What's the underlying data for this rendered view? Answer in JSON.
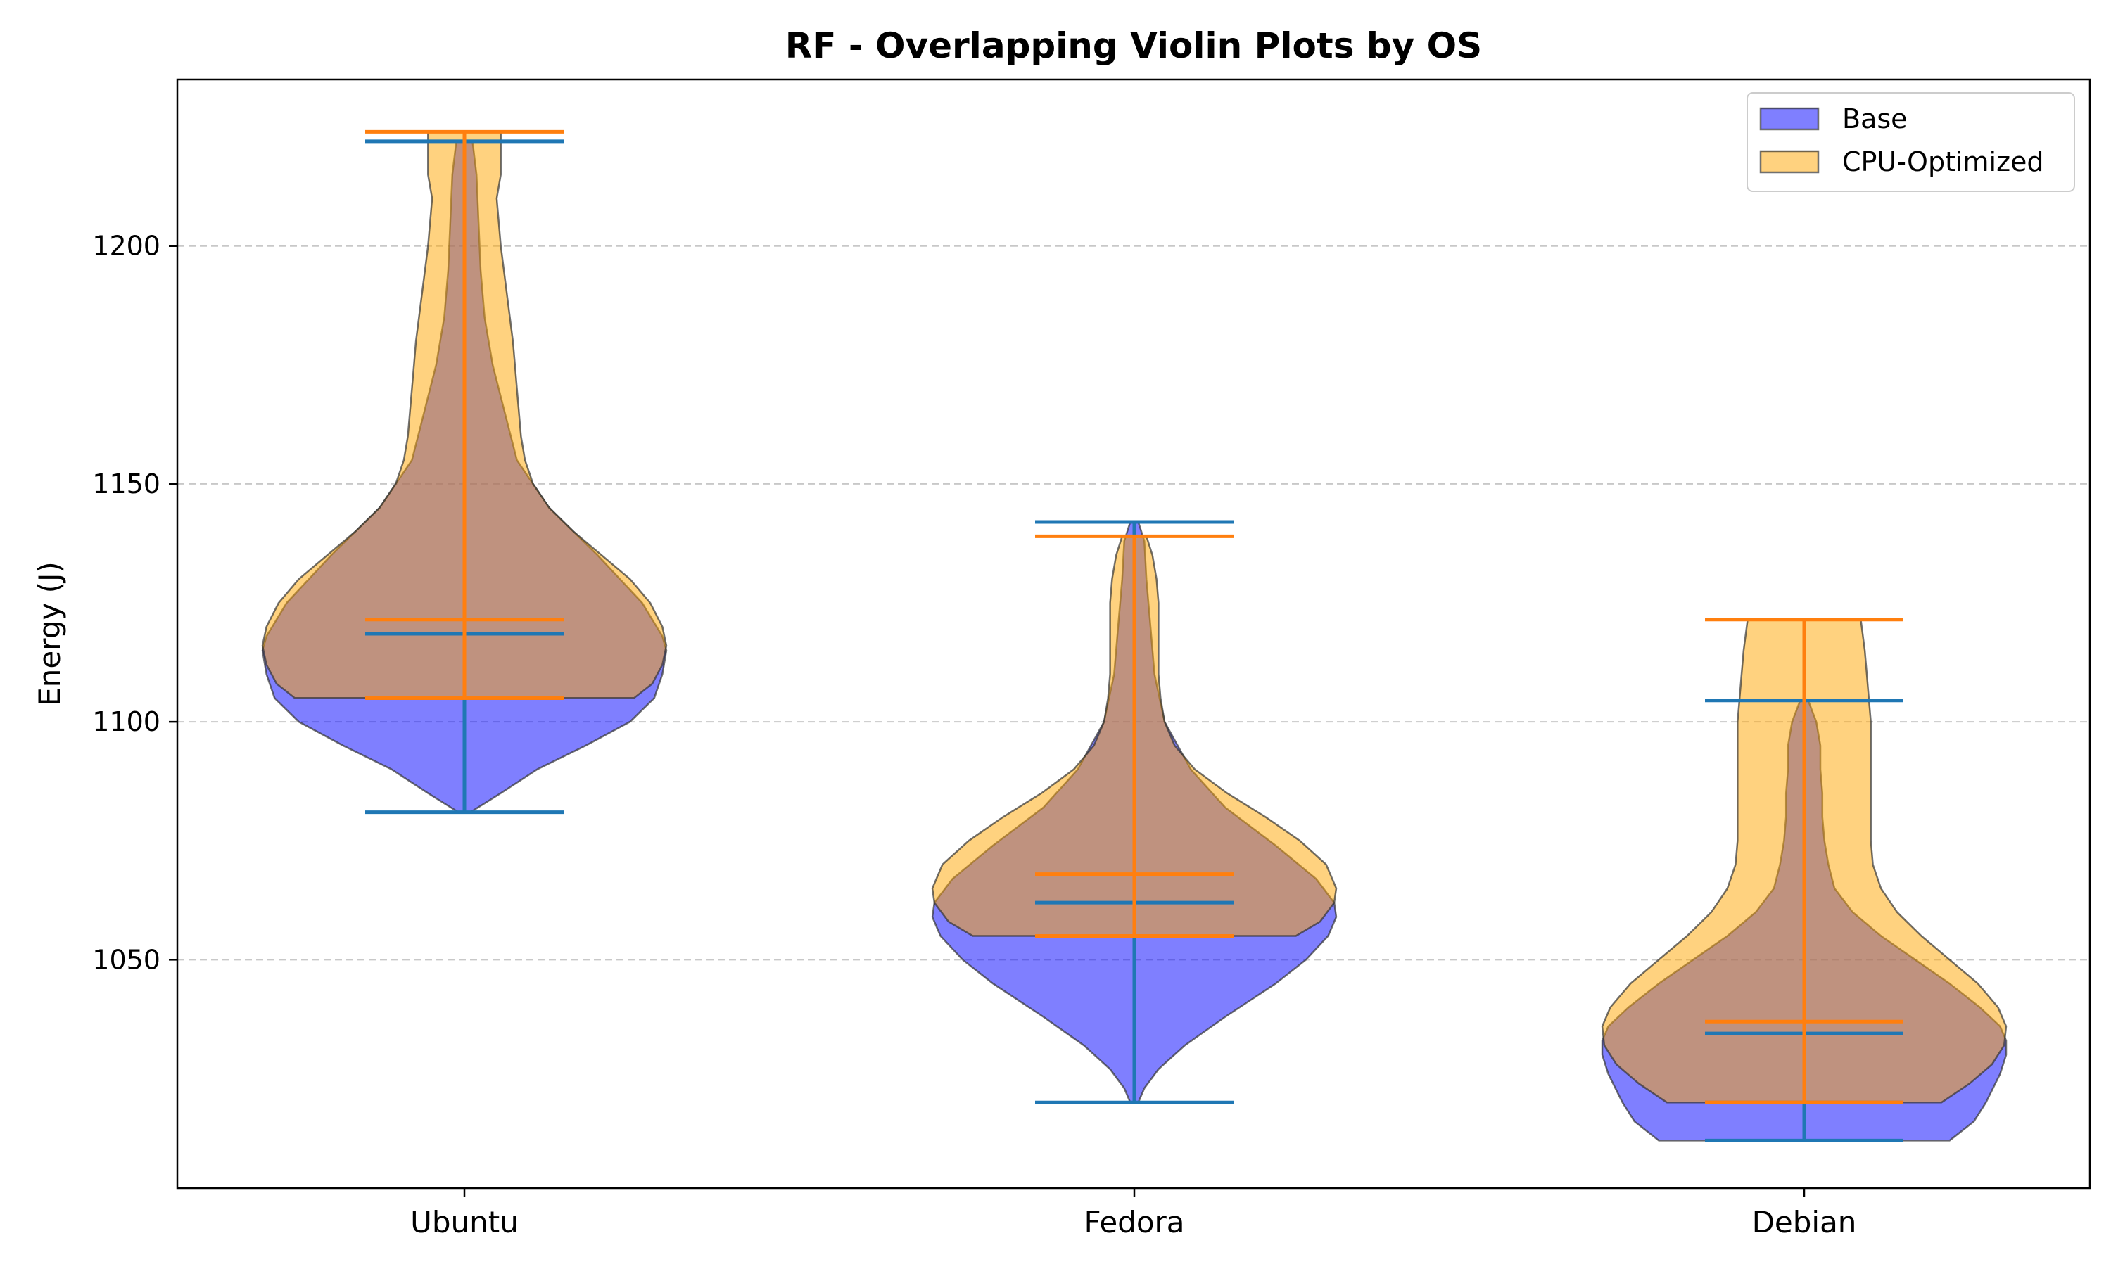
{
  "chart_data": {
    "type": "violin",
    "title": "RF - Overlapping Violin Plots by OS",
    "xlabel": "",
    "ylabel": "Energy (J)",
    "categories": [
      "Ubuntu",
      "Fedora",
      "Debian"
    ],
    "ylim": [
      1002,
      1235
    ],
    "yticks": [
      1050,
      1100,
      1150,
      1200
    ],
    "grid": "y-dashed",
    "legend_position": "top-right",
    "series": [
      {
        "name": "Base",
        "color": "#0000ff",
        "stat_color": "#1f77b4",
        "stats": [
          {
            "min": 1081,
            "q1": 1105,
            "median": 1118.5,
            "max": 1222
          },
          {
            "min": 1020,
            "q1": 1055,
            "median": 1062,
            "max": 1142
          },
          {
            "min": 1012,
            "q1": 1020,
            "median": 1034.5,
            "max": 1104.5
          }
        ],
        "density": [
          {
            "y": [
              1081,
              1085,
              1090,
              1095,
              1100,
              1105,
              1110,
              1115,
              1118,
              1125,
              1135,
              1145,
              1155,
              1165,
              1175,
              1185,
              1195,
              1205,
              1215,
              1222
            ],
            "w": [
              0.03,
              0.18,
              0.36,
              0.6,
              0.82,
              0.94,
              0.98,
              1.0,
              0.98,
              0.88,
              0.66,
              0.42,
              0.26,
              0.2,
              0.14,
              0.1,
              0.08,
              0.07,
              0.06,
              0.04
            ]
          },
          {
            "y": [
              1020,
              1023,
              1027,
              1032,
              1038,
              1045,
              1050,
              1055,
              1059,
              1062,
              1067,
              1074,
              1082,
              1090,
              1100,
              1110,
              1120,
              1130,
              1138,
              1142
            ],
            "w": [
              0.02,
              0.05,
              0.12,
              0.25,
              0.45,
              0.7,
              0.85,
              0.96,
              1.0,
              0.99,
              0.9,
              0.7,
              0.45,
              0.28,
              0.15,
              0.1,
              0.08,
              0.06,
              0.05,
              0.02
            ]
          },
          {
            "y": [
              1012,
              1016,
              1020,
              1026,
              1030,
              1033,
              1036,
              1040,
              1045,
              1050,
              1055,
              1060,
              1065,
              1070,
              1075,
              1080,
              1085,
              1090,
              1095,
              1100,
              1104.5
            ],
            "w": [
              0.72,
              0.84,
              0.9,
              0.97,
              1.0,
              1.0,
              0.97,
              0.87,
              0.72,
              0.55,
              0.38,
              0.24,
              0.15,
              0.12,
              0.1,
              0.09,
              0.09,
              0.08,
              0.08,
              0.06,
              0.02
            ]
          }
        ]
      },
      {
        "name": "CPU-Optimized",
        "color": "#ffa500",
        "stat_color": "#ff7f0e",
        "stats": [
          {
            "min": 1105,
            "q1": 1105,
            "median": 1121.5,
            "max": 1224
          },
          {
            "min": 1055,
            "q1": 1055,
            "median": 1068,
            "max": 1139
          },
          {
            "min": 1020,
            "q1": 1020,
            "median": 1037,
            "max": 1121.5
          }
        ],
        "density": [
          {
            "y": [
              1105,
              1108,
              1112,
              1116,
              1120,
              1125,
              1130,
              1135,
              1140,
              1145,
              1150,
              1155,
              1160,
              1165,
              1170,
              1175,
              1180,
              1190,
              1200,
              1210,
              1215,
              1220,
              1224
            ],
            "w": [
              0.84,
              0.93,
              0.98,
              1.0,
              0.98,
              0.92,
              0.82,
              0.68,
              0.54,
              0.42,
              0.34,
              0.3,
              0.28,
              0.27,
              0.26,
              0.25,
              0.24,
              0.21,
              0.18,
              0.16,
              0.18,
              0.18,
              0.18
            ]
          },
          {
            "y": [
              1055,
              1058,
              1062,
              1065,
              1070,
              1075,
              1080,
              1085,
              1090,
              1095,
              1100,
              1105,
              1110,
              1115,
              1120,
              1125,
              1130,
              1135,
              1139
            ],
            "w": [
              0.8,
              0.92,
              0.99,
              1.0,
              0.95,
              0.82,
              0.65,
              0.46,
              0.3,
              0.2,
              0.15,
              0.13,
              0.12,
              0.12,
              0.12,
              0.12,
              0.11,
              0.09,
              0.06
            ]
          },
          {
            "y": [
              1020,
              1024,
              1028,
              1032,
              1036,
              1040,
              1045,
              1050,
              1055,
              1060,
              1065,
              1070,
              1075,
              1080,
              1085,
              1090,
              1095,
              1100,
              1105,
              1110,
              1115,
              1121.5
            ],
            "w": [
              0.68,
              0.82,
              0.93,
              0.99,
              1.0,
              0.96,
              0.86,
              0.72,
              0.58,
              0.46,
              0.38,
              0.34,
              0.33,
              0.33,
              0.33,
              0.33,
              0.33,
              0.33,
              0.32,
              0.31,
              0.3,
              0.28
            ]
          }
        ]
      }
    ]
  }
}
